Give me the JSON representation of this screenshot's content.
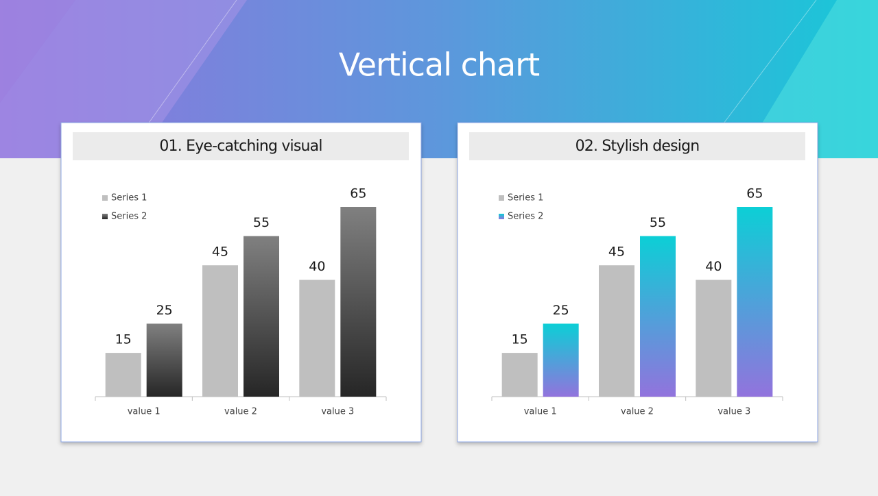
{
  "title": "Vertical chart",
  "chart_data": [
    {
      "type": "bar",
      "title": "01. Eye-catching visual",
      "categories": [
        "value 1",
        "value 2",
        "value 3"
      ],
      "series": [
        {
          "name": "Series 1",
          "color": "#bfbfbf",
          "values": [
            15,
            45,
            40
          ]
        },
        {
          "name": "Series 2",
          "color": [
            "#808080",
            "#262626"
          ],
          "values": [
            25,
            55,
            65
          ]
        }
      ],
      "ylim": [
        0,
        65
      ],
      "legend": "top-left"
    },
    {
      "type": "bar",
      "title": "02. Stylish design",
      "categories": [
        "value 1",
        "value 2",
        "value 3"
      ],
      "series": [
        {
          "name": "Series 1",
          "color": "#bfbfbf",
          "values": [
            15,
            45,
            40
          ]
        },
        {
          "name": "Series 2",
          "color": [
            "#0ccfd6",
            "#9273dd"
          ],
          "values": [
            25,
            55,
            65
          ]
        }
      ],
      "ylim": [
        0,
        65
      ],
      "legend": "top-left"
    }
  ]
}
